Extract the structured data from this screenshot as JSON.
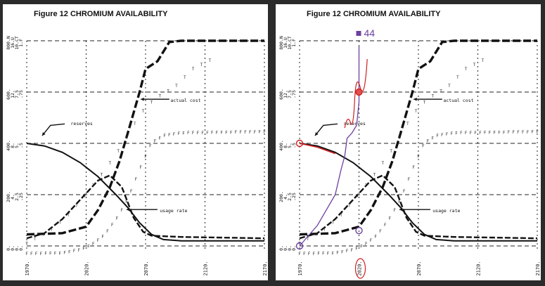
{
  "panels": [
    {
      "id": "left",
      "title": "Figure 12 CHROMIUM AVAILABILITY"
    },
    {
      "id": "right",
      "title": "Figure 12 CHROMIUM AVAILABILITY"
    }
  ],
  "chart_data": {
    "type": "line",
    "title": "Figure 12 CHROMIUM AVAILABILITY",
    "xlabel": "",
    "ylabel": "",
    "xlim": [
      1970,
      2170
    ],
    "ylim": [
      0,
      800
    ],
    "x_ticks": [
      "1970.",
      "2020.",
      "2070.",
      "2120.",
      "2170."
    ],
    "y_tick_columns": [
      [
        "800.N",
        "600.",
        "400.",
        "200.",
        "0."
      ],
      [
        "16.U",
        "12.",
        "8.",
        "4.",
        "0."
      ],
      [
        "10.CT",
        "7.5",
        "5.",
        "2.5",
        "0."
      ],
      [
        "1.F",
        ".75",
        ".5",
        ".25",
        "0."
      ]
    ],
    "grid": true,
    "annotations": [
      "reserves",
      "actual cost",
      "usage rate"
    ],
    "marker_letters": {
      "reserves": "N",
      "actual_cost": "C",
      "usage_rate": "U",
      "F_series": "F",
      "T_series": "T"
    },
    "series": [
      {
        "key": "reserves",
        "values": [
          [
            1970,
            400
          ],
          [
            1985,
            390
          ],
          [
            2000,
            365
          ],
          [
            2015,
            325
          ],
          [
            2030,
            270
          ],
          [
            2045,
            200
          ],
          [
            2055,
            150
          ],
          [
            2065,
            90
          ],
          [
            2075,
            45
          ],
          [
            2085,
            25
          ],
          [
            2100,
            20
          ],
          [
            2130,
            20
          ],
          [
            2170,
            20
          ]
        ]
      },
      {
        "key": "actual_cost",
        "values": [
          [
            1970,
            45
          ],
          [
            2000,
            50
          ],
          [
            2020,
            75
          ],
          [
            2030,
            140
          ],
          [
            2040,
            230
          ],
          [
            2048,
            330
          ],
          [
            2055,
            440
          ],
          [
            2060,
            520
          ],
          [
            2065,
            600
          ],
          [
            2070,
            690
          ],
          [
            2080,
            720
          ],
          [
            2090,
            795
          ],
          [
            2100,
            800
          ],
          [
            2170,
            800
          ]
        ]
      },
      {
        "key": "usage_rate",
        "values": [
          [
            1970,
            30
          ],
          [
            1985,
            50
          ],
          [
            2000,
            105
          ],
          [
            2015,
            180
          ],
          [
            2030,
            255
          ],
          [
            2040,
            275
          ],
          [
            2050,
            230
          ],
          [
            2060,
            110
          ],
          [
            2068,
            55
          ],
          [
            2075,
            40
          ],
          [
            2100,
            35
          ],
          [
            2170,
            30
          ]
        ]
      },
      {
        "key": "F_series",
        "values": [
          [
            1970,
            -30
          ],
          [
            1980,
            -30
          ],
          [
            2000,
            -28
          ],
          [
            2015,
            -15
          ],
          [
            2025,
            5
          ],
          [
            2035,
            40
          ],
          [
            2045,
            100
          ],
          [
            2055,
            180
          ],
          [
            2062,
            260
          ],
          [
            2068,
            330
          ],
          [
            2075,
            400
          ],
          [
            2085,
            430
          ],
          [
            2100,
            440
          ],
          [
            2170,
            445
          ]
        ]
      },
      {
        "key": "T_series",
        "values": [
          [
            1970,
            10
          ],
          [
            1990,
            60
          ],
          [
            2005,
            120
          ],
          [
            2020,
            200
          ],
          [
            2035,
            290
          ],
          [
            2050,
            390
          ],
          [
            2060,
            470
          ],
          [
            2070,
            540
          ],
          [
            2080,
            580
          ],
          [
            2095,
            620
          ],
          [
            2110,
            690
          ],
          [
            2125,
            725
          ]
        ]
      }
    ]
  },
  "markup": {
    "label_44": "44",
    "circles": [
      [
        2020,
        600
      ],
      [
        2020,
        60
      ],
      [
        1970,
        400
      ],
      [
        1970,
        0
      ]
    ],
    "path": [
      [
        1970,
        0
      ],
      [
        1985,
        80
      ],
      [
        2000,
        200
      ],
      [
        2005,
        300
      ],
      [
        2008,
        350
      ],
      [
        2010,
        420
      ],
      [
        2014,
        440
      ],
      [
        2018,
        470
      ],
      [
        2020,
        560
      ],
      [
        2020,
        780
      ]
    ]
  }
}
